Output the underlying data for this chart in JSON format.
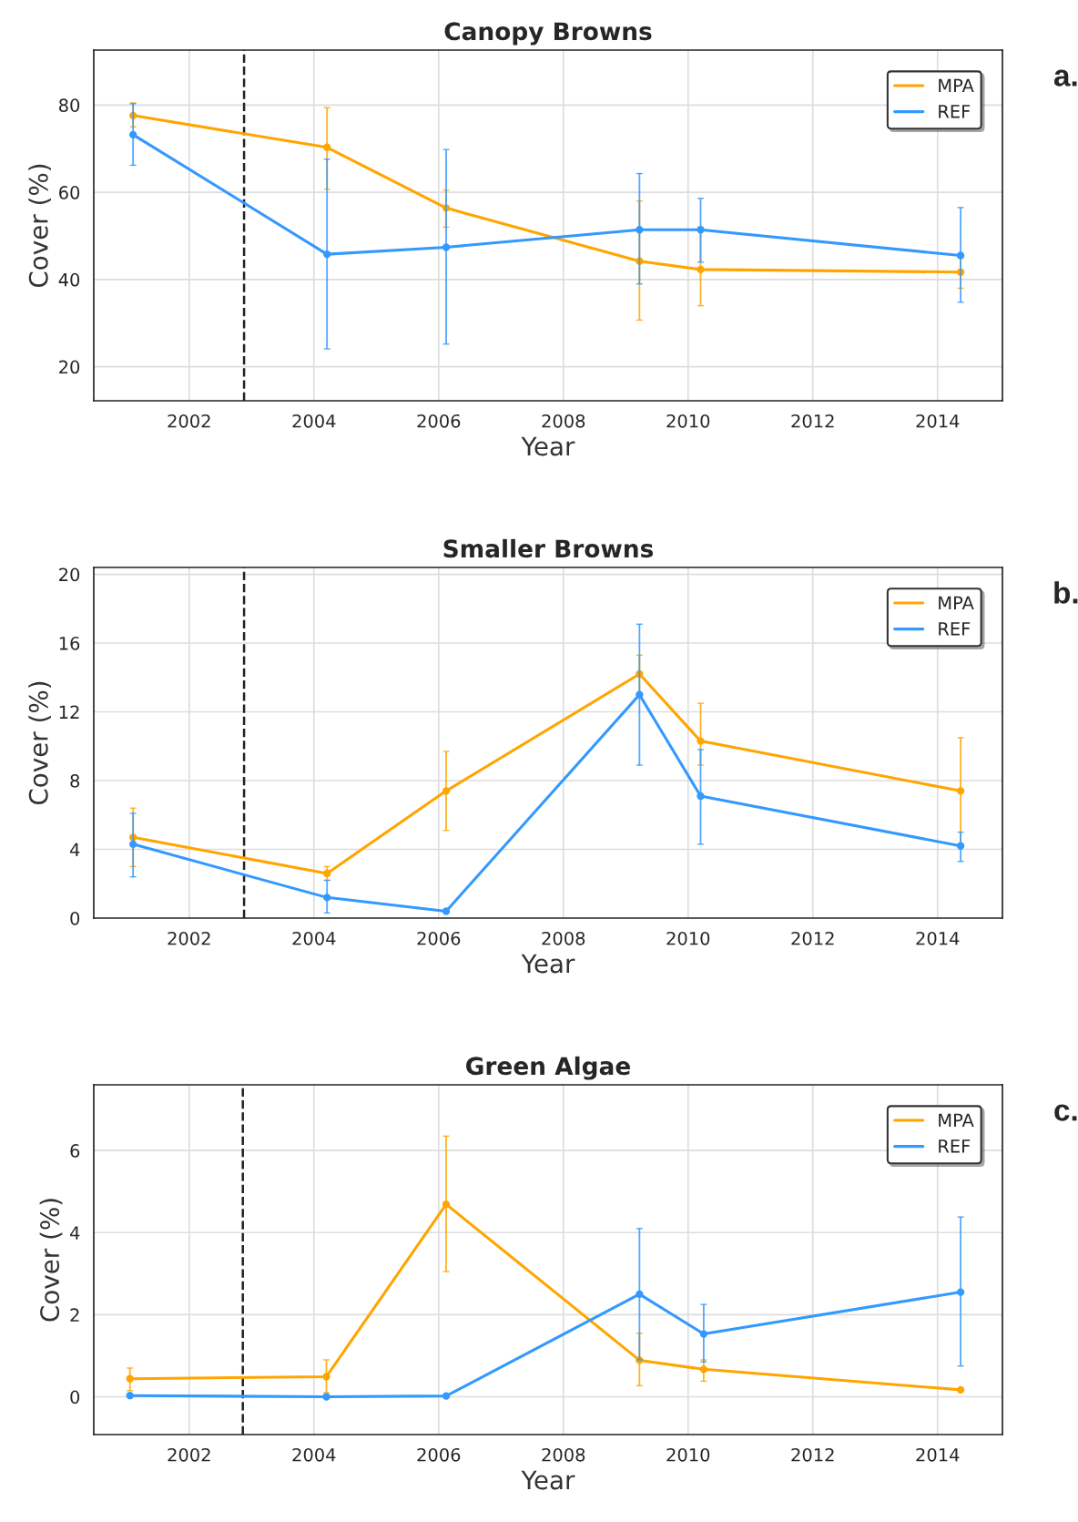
{
  "chart_data": [
    {
      "type": "line",
      "title": "Canopy Browns",
      "xlabel": "Year",
      "ylabel": "Cover (%)",
      "annotations": [
        "a."
      ],
      "xlim": [
        2000.47,
        2015.04
      ],
      "xticks": [
        2002,
        2004,
        2006,
        2008,
        2010,
        2012,
        2014
      ],
      "ylim": [
        12.2,
        92.6
      ],
      "yticks": [
        20,
        40,
        60,
        80
      ],
      "grid": true,
      "legend": "top right",
      "marker": "circle",
      "line_style": "solid",
      "ref_lines": [
        {
          "axis": "x",
          "value": 2002.88,
          "color": "#222222",
          "line_style": "dashed"
        }
      ],
      "series": [
        {
          "name": "MPA",
          "color": "#ffa500",
          "x": [
            2001.1,
            2004.21,
            2006.12,
            2009.22,
            2010.2,
            2014.37
          ],
          "values": [
            77.6,
            70.3,
            56.4,
            44.2,
            42.3,
            41.7
          ],
          "errors": [
            [
              75,
              80.5
            ],
            [
              60.7,
              79.4
            ],
            [
              52,
              60.5
            ],
            [
              30.7,
              58
            ],
            [
              34,
              52
            ],
            [
              38,
              45
            ]
          ]
        },
        {
          "name": "REF",
          "color": "#3399ff",
          "x": [
            2001.1,
            2004.21,
            2006.12,
            2009.22,
            2010.2,
            2014.37
          ],
          "values": [
            73.2,
            45.8,
            47.4,
            51.4,
            51.4,
            45.5
          ],
          "errors": [
            [
              66.2,
              80.3
            ],
            [
              24.1,
              67.6
            ],
            [
              25.2,
              69.8
            ],
            [
              39,
              64.3
            ],
            [
              44,
              58.6
            ],
            [
              34.8,
              56.5
            ]
          ]
        }
      ]
    },
    {
      "type": "line",
      "title": "Smaller Browns",
      "xlabel": "Year",
      "ylabel": "Cover (%)",
      "annotations": [
        "b."
      ],
      "xlim": [
        2000.47,
        2015.04
      ],
      "xticks": [
        2002,
        2004,
        2006,
        2008,
        2010,
        2012,
        2014
      ],
      "ylim": [
        0,
        20.4
      ],
      "yticks": [
        0,
        4,
        8,
        12,
        16,
        20
      ],
      "grid": true,
      "legend": "top right",
      "marker": "circle",
      "line_style": "solid",
      "ref_lines": [
        {
          "axis": "x",
          "value": 2002.88,
          "color": "#222222",
          "line_style": "dashed"
        }
      ],
      "series": [
        {
          "name": "MPA",
          "color": "#ffa500",
          "x": [
            2001.1,
            2004.21,
            2006.12,
            2009.22,
            2010.2,
            2014.37
          ],
          "values": [
            4.7,
            2.6,
            7.4,
            14.2,
            10.3,
            7.4
          ],
          "errors": [
            [
              3,
              6.4
            ],
            [
              2.2,
              3.0
            ],
            [
              5.1,
              9.7
            ],
            [
              13,
              15.3
            ],
            [
              8.9,
              12.5
            ],
            [
              4.3,
              10.5
            ]
          ]
        },
        {
          "name": "REF",
          "color": "#3399ff",
          "x": [
            2001.1,
            2004.21,
            2006.12,
            2009.22,
            2010.2,
            2014.37
          ],
          "values": [
            4.3,
            1.2,
            0.4,
            13.0,
            7.1,
            4.2
          ],
          "errors": [
            [
              2.4,
              6.1
            ],
            [
              0.3,
              2.2
            ],
            null,
            [
              8.9,
              17.1
            ],
            [
              4.3,
              9.8
            ],
            [
              3.3,
              5.0
            ]
          ]
        }
      ]
    },
    {
      "type": "line",
      "title": "Green Algae",
      "xlabel": "Year",
      "ylabel": "Cover (%)",
      "annotations": [
        "c."
      ],
      "xlim": [
        2000.47,
        2015.04
      ],
      "xticks": [
        2002,
        2004,
        2006,
        2008,
        2010,
        2012,
        2014
      ],
      "ylim": [
        -0.92,
        7.6
      ],
      "yticks": [
        0,
        2,
        4,
        6
      ],
      "grid": true,
      "legend": "top right",
      "marker": "circle",
      "line_style": "solid",
      "ref_lines": [
        {
          "axis": "x",
          "value": 2002.86,
          "color": "#222222",
          "line_style": "dashed"
        }
      ],
      "series": [
        {
          "name": "MPA",
          "color": "#ffa500",
          "x": [
            2001.05,
            2004.2,
            2006.12,
            2009.22,
            2010.25,
            2014.37
          ],
          "values": [
            0.44,
            0.49,
            4.69,
            0.89,
            0.67,
            0.17
          ],
          "errors": [
            [
              0.15,
              0.7
            ],
            [
              0.1,
              0.9
            ],
            [
              3.05,
              6.35
            ],
            [
              0.27,
              1.55
            ],
            [
              0.38,
              0.9
            ],
            null
          ]
        },
        {
          "name": "REF",
          "color": "#3399ff",
          "x": [
            2001.05,
            2004.2,
            2006.12,
            2009.22,
            2010.25,
            2014.37
          ],
          "values": [
            0.03,
            0.0,
            0.02,
            2.5,
            1.53,
            2.55
          ],
          "errors": [
            null,
            null,
            null,
            [
              0.9,
              4.1
            ],
            [
              0.85,
              2.25
            ],
            [
              0.75,
              4.38
            ]
          ]
        }
      ]
    }
  ]
}
